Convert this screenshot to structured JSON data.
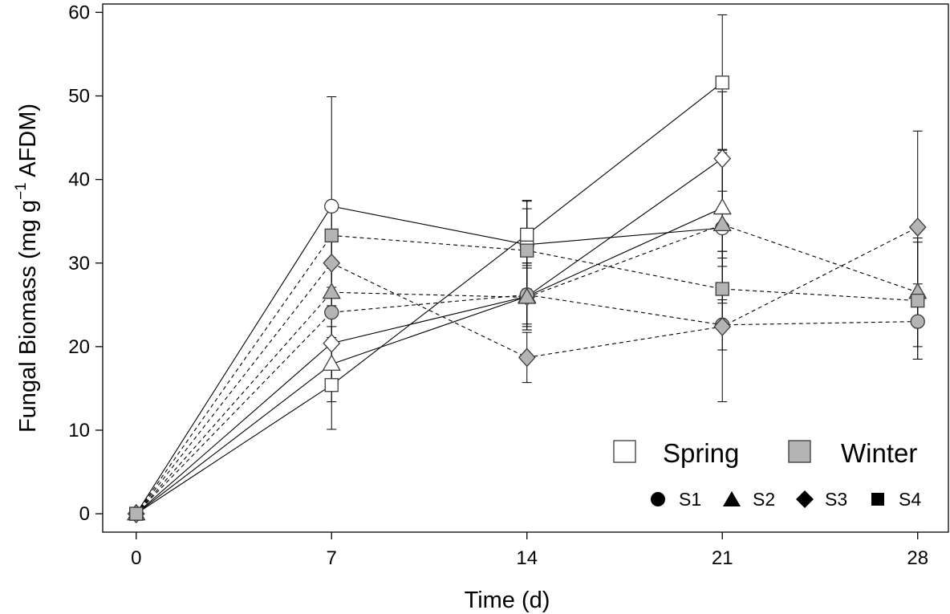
{
  "chart_data": {
    "type": "line",
    "xlabel": "Time (d)",
    "ylabel": {
      "main": "Fungal Biomass (mg g",
      "superscript": "−1",
      "tail": " AFDM)"
    },
    "xlim": [
      -1.2,
      29.1
    ],
    "ylim": [
      -2.2,
      61
    ],
    "xticks": [
      0,
      7,
      14,
      21,
      28
    ],
    "yticks": [
      0,
      10,
      20,
      30,
      40,
      50,
      60
    ],
    "grid": false,
    "legend_position": "bottom-right",
    "legend": {
      "seasons": [
        {
          "label": "Spring",
          "fill": "#ffffff",
          "line": "solid"
        },
        {
          "label": "Winter",
          "fill": "#b4b4b4",
          "line": "dashed"
        }
      ],
      "sites": [
        {
          "label": "S1",
          "marker": "circle"
        },
        {
          "label": "S2",
          "marker": "triangle"
        },
        {
          "label": "S3",
          "marker": "diamond"
        },
        {
          "label": "S4",
          "marker": "square"
        }
      ]
    },
    "series": [
      {
        "name": "Spring S1",
        "season": "Spring",
        "marker": "circle",
        "x": [
          0,
          7,
          14,
          21
        ],
        "y": [
          0,
          36.8,
          32.2,
          34.2
        ],
        "err": [
          0,
          13.1,
          5.3,
          9.0
        ]
      },
      {
        "name": "Spring S2",
        "season": "Spring",
        "marker": "triangle",
        "x": [
          0,
          7,
          14,
          21
        ],
        "y": [
          0,
          17.9,
          26.0,
          36.6
        ],
        "err": [
          0,
          4.5,
          4.0,
          7.0
        ]
      },
      {
        "name": "Spring S3",
        "season": "Spring",
        "marker": "diamond",
        "x": [
          0,
          7,
          14,
          21
        ],
        "y": [
          0,
          20.4,
          26.0,
          42.5
        ],
        "err": [
          0,
          4.5,
          4.0,
          8.0
        ]
      },
      {
        "name": "Spring S4",
        "season": "Spring",
        "marker": "square",
        "x": [
          0,
          7,
          14,
          21
        ],
        "y": [
          0,
          15.4,
          33.4,
          51.6
        ],
        "err": [
          0,
          5.3,
          4.0,
          8.1
        ]
      },
      {
        "name": "Winter S1",
        "season": "Winter",
        "marker": "circle",
        "x": [
          0,
          7,
          14,
          21,
          28
        ],
        "y": [
          0,
          24.1,
          26.2,
          22.6,
          23.0
        ],
        "err": [
          0,
          3.0,
          3.5,
          3.0,
          4.5
        ]
      },
      {
        "name": "Winter S2",
        "season": "Winter",
        "marker": "triangle",
        "x": [
          0,
          7,
          14,
          21,
          28
        ],
        "y": [
          0,
          26.5,
          25.9,
          34.6,
          26.5
        ],
        "err": [
          0,
          3.0,
          3.5,
          4.0,
          6.5
        ]
      },
      {
        "name": "Winter S3",
        "season": "Winter",
        "marker": "diamond",
        "x": [
          0,
          7,
          14,
          21,
          28
        ],
        "y": [
          0,
          30.0,
          18.7,
          22.4,
          34.3
        ],
        "err": [
          0,
          4.0,
          3.0,
          9.0,
          11.5
        ]
      },
      {
        "name": "Winter S4",
        "season": "Winter",
        "marker": "square",
        "x": [
          0,
          7,
          14,
          21,
          28
        ],
        "y": [
          0,
          33.3,
          31.5,
          26.9,
          25.5
        ],
        "err": [
          0,
          3.0,
          5.0,
          4.5,
          7.0
        ]
      }
    ]
  },
  "styles": {
    "spring_fill": "#ffffff",
    "winter_fill": "#b4b4b4",
    "line_color": "#000000",
    "marker_edge": "#3a3a3a"
  }
}
